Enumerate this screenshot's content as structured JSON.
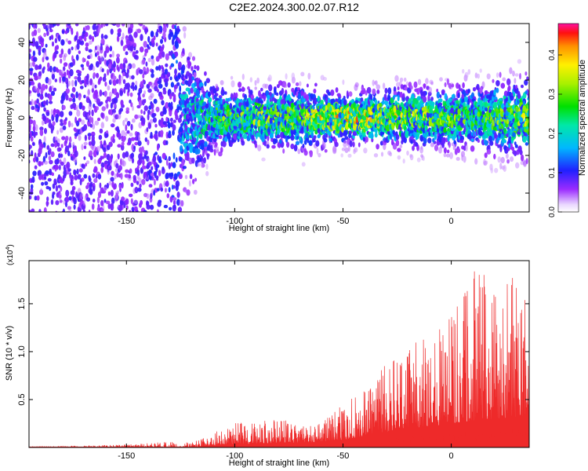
{
  "title": "C2E2.2024.300.02.07.R12",
  "chart_data": [
    {
      "type": "heatmap",
      "xlabel": "Height of straight line (km)",
      "ylabel": "Frequency (Hz)",
      "xlim": [
        -195,
        36
      ],
      "ylim": [
        -50,
        50
      ],
      "x_ticks": [
        -150,
        -100,
        -50,
        0
      ],
      "y_ticks": [
        -40,
        -20,
        0,
        20,
        40
      ],
      "colorbar": {
        "label": "Normalized spectral amplitude",
        "range": [
          0.0,
          0.48
        ],
        "ticks": [
          0.0,
          0.1,
          0.2,
          0.3,
          0.4
        ],
        "colormap": "rainbow"
      },
      "x_band_samples": [
        -190,
        -170,
        -150,
        -130,
        -110,
        -90,
        -70,
        -50,
        -30,
        -10,
        10,
        30
      ],
      "peak_amplitude": [
        0.12,
        0.11,
        0.1,
        0.14,
        0.25,
        0.3,
        0.28,
        0.38,
        0.33,
        0.3,
        0.25,
        0.3
      ],
      "band_halfwidth_hz": [
        50,
        50,
        50,
        45,
        14,
        12,
        14,
        10,
        12,
        12,
        14,
        16
      ]
    },
    {
      "type": "line",
      "color": "#ee2a2a",
      "xlabel": "Height of straight line (km)",
      "ylabel": "SNR (10 * v/v)",
      "y_multiplier": "(x10",
      "y_multiplier_exp": "4",
      "y_multiplier_close": ")",
      "xlim": [
        -195,
        36
      ],
      "ylim": [
        0,
        1.95
      ],
      "x_ticks": [
        -150,
        -100,
        -50,
        0
      ],
      "y_ticks": [
        0.5,
        1.0,
        1.5
      ],
      "y_tick_labels": [
        "0.5",
        "1.0",
        "1.5"
      ],
      "envelope": {
        "x": [
          -195,
          -150,
          -130,
          -120,
          -110,
          -100,
          -90,
          -80,
          -70,
          -60,
          -50,
          -40,
          -30,
          -20,
          -10,
          0,
          10,
          20,
          30,
          36
        ],
        "y_max": [
          0.01,
          0.03,
          0.06,
          0.05,
          0.15,
          0.26,
          0.25,
          0.33,
          0.22,
          0.26,
          0.45,
          0.6,
          0.88,
          1.06,
          1.2,
          1.37,
          1.9,
          1.85,
          1.8,
          1.56
        ],
        "y_base": [
          0.0,
          0.0,
          0.0,
          0.0,
          0.02,
          0.03,
          0.04,
          0.05,
          0.05,
          0.06,
          0.08,
          0.12,
          0.16,
          0.2,
          0.22,
          0.25,
          0.28,
          0.3,
          0.32,
          0.3
        ]
      }
    }
  ]
}
